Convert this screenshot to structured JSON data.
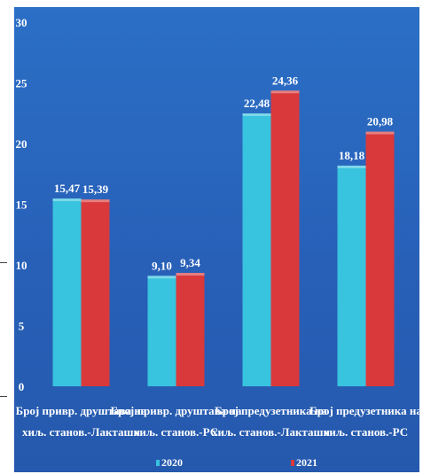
{
  "chart_data": {
    "type": "bar",
    "categories": [
      [
        "Број привр. друштава на",
        "хиљ. станов.-Лакташи"
      ],
      [
        "Број привр. друштава на",
        "хиљ. станов.-РС"
      ],
      [
        "Број предузетника на",
        "хиљ. станов.-Лакташи"
      ],
      [
        "Број предузетника на",
        "хиљ. станов.-РС"
      ]
    ],
    "series": [
      {
        "name": "2020",
        "values": [
          15.47,
          9.1,
          22.48,
          18.18
        ],
        "labels": [
          "15,47",
          "9,10",
          "22,48",
          "18,18"
        ],
        "color": "#38c3de"
      },
      {
        "name": "2021",
        "values": [
          15.39,
          9.34,
          24.36,
          20.98
        ],
        "labels": [
          "15,39",
          "9,34",
          "24,36",
          "20,98"
        ],
        "color": "#d9393b"
      }
    ],
    "ylim": [
      0,
      30
    ],
    "yticks": [
      0,
      5,
      10,
      15,
      20,
      25,
      30
    ],
    "grid": false,
    "legend": "bottom",
    "title": "",
    "xlabel": "",
    "ylabel": ""
  },
  "colors": {
    "background": "#2b6fc6",
    "text": "#ffffff"
  }
}
